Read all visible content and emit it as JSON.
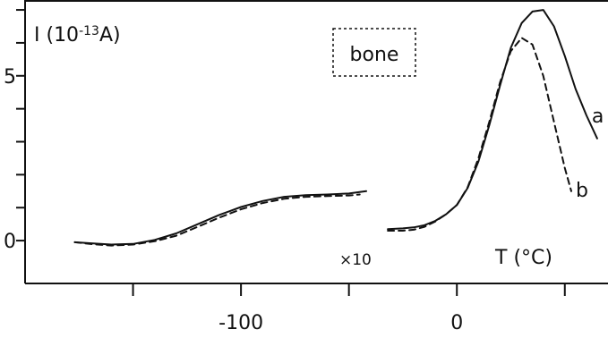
{
  "chart_data": {
    "type": "line",
    "ylabel": "I (10-13A)",
    "ylabel_parts": {
      "main": "I (10",
      "exp": "-13",
      "unit": "A)"
    },
    "xlabel": "T (°C)",
    "annotations": {
      "box_label": "bone",
      "multiplier": "×10"
    },
    "xlim": [
      -200,
      70
    ],
    "ylim": [
      -1.3,
      7.3
    ],
    "x_ticks": [
      -150,
      -100,
      -50,
      0,
      50
    ],
    "x_tick_labels": [
      {
        "value": -100,
        "text": "-100"
      },
      {
        "value": 0,
        "text": "0"
      }
    ],
    "y_ticks": [
      0,
      1,
      2,
      3,
      4,
      5,
      6,
      7
    ],
    "y_tick_labels": [
      {
        "value": 0,
        "text": "0"
      },
      {
        "value": 5,
        "text": "5"
      }
    ],
    "series": [
      {
        "name": "a",
        "style": "solid",
        "segment_low": {
          "x": [
            -177,
            -170,
            -160,
            -150,
            -140,
            -130,
            -120,
            -110,
            -100,
            -90,
            -80,
            -70,
            -60,
            -50,
            -42
          ],
          "y": [
            -0.05,
            -0.08,
            -0.12,
            -0.1,
            0.02,
            0.22,
            0.5,
            0.78,
            1.02,
            1.2,
            1.33,
            1.38,
            1.4,
            1.43,
            1.5
          ]
        },
        "segment_high": {
          "x": [
            -32,
            -25,
            -20,
            -15,
            -10,
            -5,
            0,
            5,
            10,
            15,
            20,
            25,
            30,
            35,
            40,
            45,
            50,
            55,
            60,
            65
          ],
          "y": [
            0.35,
            0.37,
            0.4,
            0.47,
            0.6,
            0.8,
            1.08,
            1.6,
            2.4,
            3.5,
            4.7,
            5.85,
            6.6,
            6.95,
            7.0,
            6.5,
            5.6,
            4.6,
            3.8,
            3.1
          ]
        }
      },
      {
        "name": "b",
        "style": "dashed",
        "segment_low": {
          "x": [
            -177,
            -170,
            -160,
            -150,
            -140,
            -130,
            -120,
            -110,
            -100,
            -90,
            -80,
            -70,
            -60,
            -50,
            -45
          ],
          "y": [
            -0.05,
            -0.1,
            -0.15,
            -0.12,
            -0.02,
            0.15,
            0.42,
            0.7,
            0.95,
            1.14,
            1.27,
            1.33,
            1.35,
            1.37,
            1.4
          ]
        },
        "segment_high": {
          "x": [
            -32,
            -25,
            -20,
            -15,
            -10,
            -5,
            0,
            5,
            10,
            15,
            20,
            25,
            30,
            35,
            40,
            45,
            50,
            53
          ],
          "y": [
            0.3,
            0.3,
            0.33,
            0.42,
            0.58,
            0.8,
            1.08,
            1.62,
            2.5,
            3.6,
            4.8,
            5.75,
            6.15,
            5.95,
            5.0,
            3.6,
            2.2,
            1.5
          ]
        }
      }
    ]
  }
}
